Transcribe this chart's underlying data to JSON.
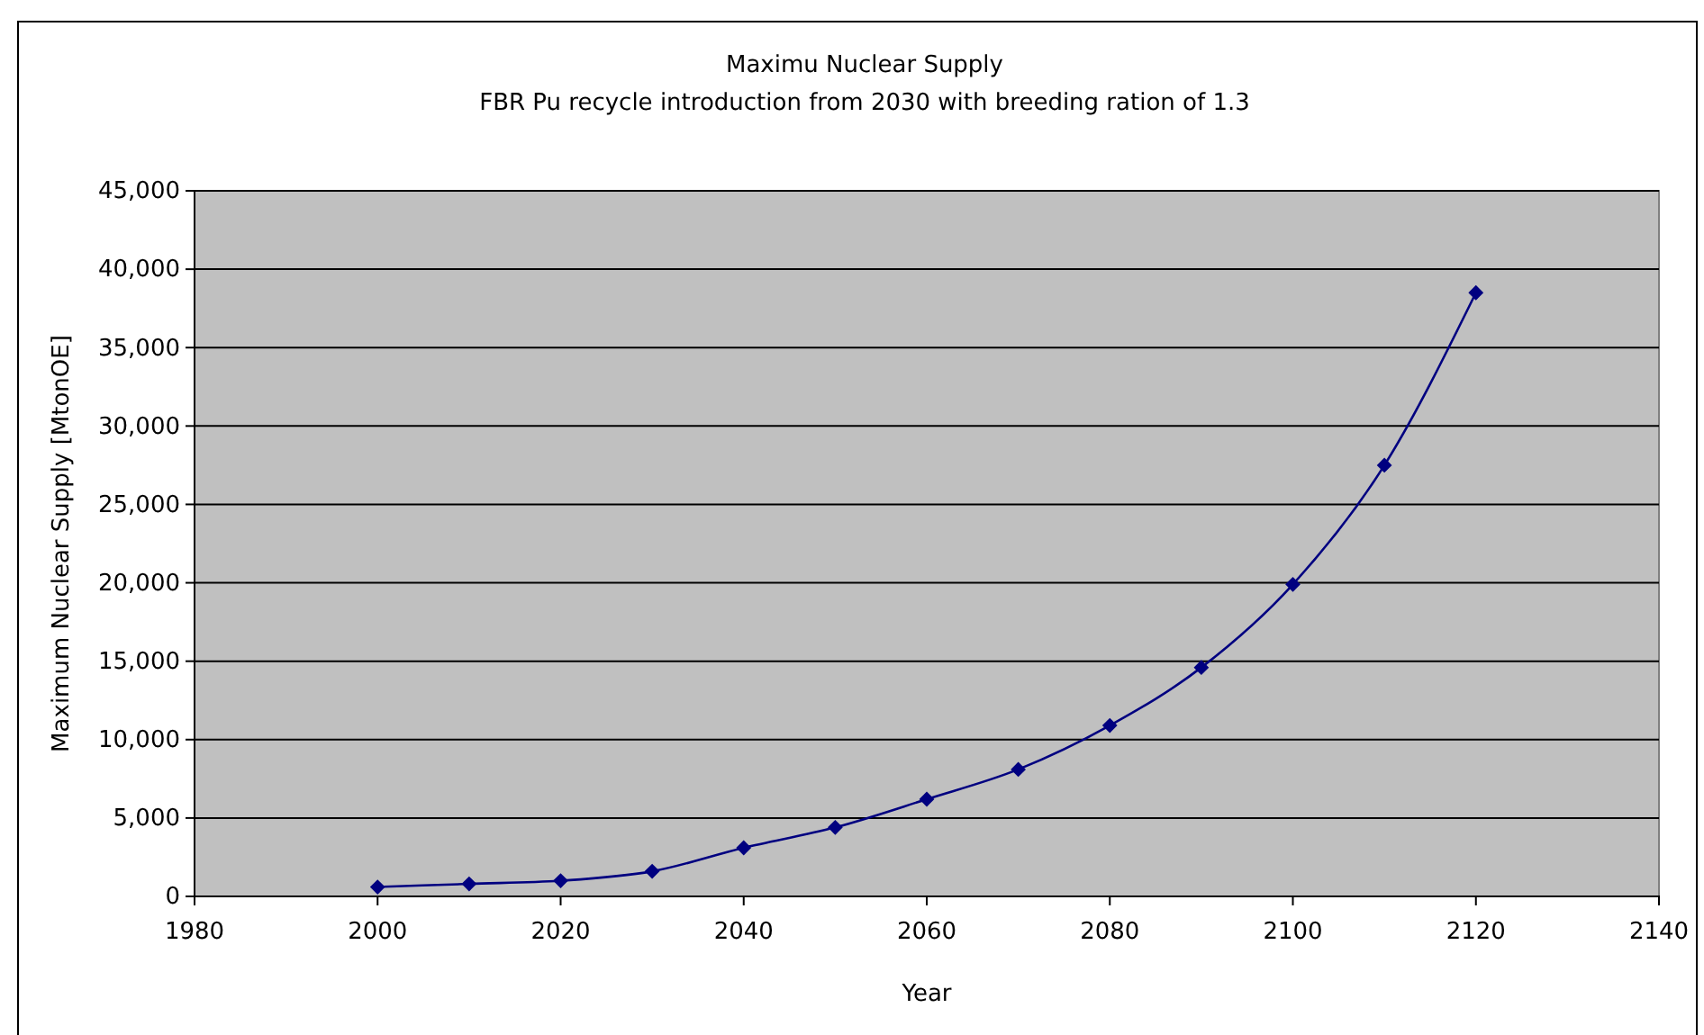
{
  "chart_data": {
    "type": "line",
    "title": "Maximu Nuclear Supply",
    "subtitle": "FBR Pu recycle introduction from 2030 with breeding ration of 1.3",
    "xlabel": "Year",
    "ylabel": "Maximum Nuclear Supply [MtonOE]",
    "x": [
      2000,
      2010,
      2020,
      2030,
      2040,
      2050,
      2060,
      2070,
      2080,
      2090,
      2100,
      2110,
      2120
    ],
    "series": [
      {
        "color": "#000080",
        "values": [
          600,
          800,
          1000,
          1600,
          3100,
          4400,
          6200,
          8100,
          10900,
          14600,
          19900,
          27500,
          38500
        ]
      }
    ],
    "xlim": [
      1980,
      2140
    ],
    "xticks": [
      1980,
      2000,
      2020,
      2040,
      2060,
      2080,
      2100,
      2120,
      2140
    ],
    "ylim": [
      0,
      45000
    ],
    "yticks": [
      {
        "value": 0,
        "label": "0"
      },
      {
        "value": 5000,
        "label": "5,000"
      },
      {
        "value": 10000,
        "label": "10,000"
      },
      {
        "value": 15000,
        "label": "15,000"
      },
      {
        "value": 20000,
        "label": "20,000"
      },
      {
        "value": 25000,
        "label": "25,000"
      },
      {
        "value": 30000,
        "label": "30,000"
      },
      {
        "value": 35000,
        "label": "35,000"
      },
      {
        "value": 40000,
        "label": "40,000"
      },
      {
        "value": 45000,
        "label": "45,000"
      }
    ],
    "grid": "y",
    "marker": "diamond",
    "line_style": "solid"
  }
}
